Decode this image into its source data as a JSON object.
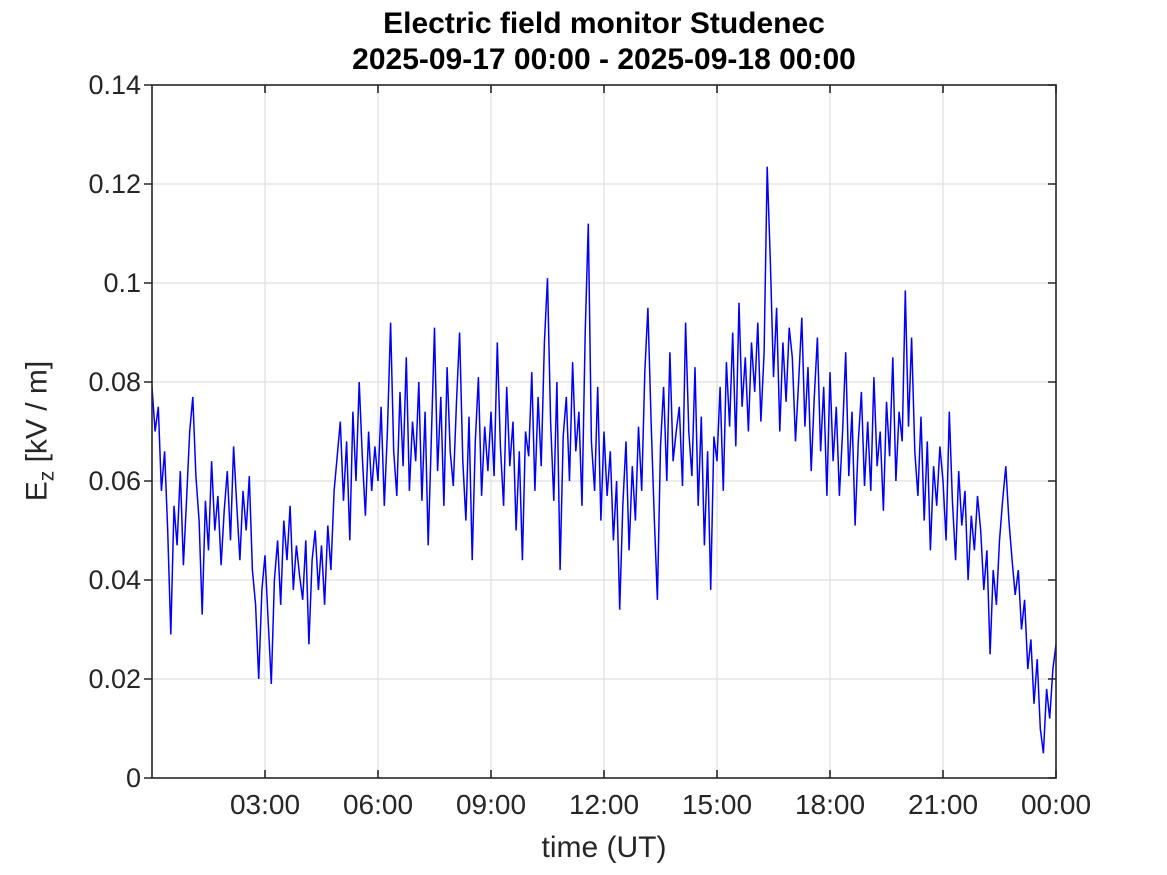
{
  "figure": {
    "title": "Electric field monitor Studenec",
    "subtitle": "2025-09-17 00:00 - 2025-09-18 00:00",
    "background_color": "#ffffff"
  },
  "chart_data": {
    "type": "line",
    "title": "Electric field monitor Studenec",
    "subtitle": "2025-09-17 00:00 - 2025-09-18 00:00",
    "xlabel": "time (UT)",
    "ylabel": "E_z [kV / m]",
    "ylabel_parts": {
      "base": "E",
      "sub": "z",
      "rest": " [kV / m]"
    },
    "legend": "none",
    "grid": true,
    "box": true,
    "line_color": "#0000ff",
    "grid_color": "#e0e0e0",
    "axis_color": "#262626",
    "title_color": "#000000",
    "xlim_hours": [
      0,
      24
    ],
    "ylim": [
      0,
      0.14
    ],
    "xticks": [
      {
        "hour": 3,
        "label": "03:00"
      },
      {
        "hour": 6,
        "label": "06:00"
      },
      {
        "hour": 9,
        "label": "09:00"
      },
      {
        "hour": 12,
        "label": "12:00"
      },
      {
        "hour": 15,
        "label": "15:00"
      },
      {
        "hour": 18,
        "label": "18:00"
      },
      {
        "hour": 21,
        "label": "21:00"
      },
      {
        "hour": 24,
        "label": "00:00"
      }
    ],
    "yticks": [
      {
        "value": 0,
        "label": "0"
      },
      {
        "value": 0.02,
        "label": "0.02"
      },
      {
        "value": 0.04,
        "label": "0.04"
      },
      {
        "value": 0.06,
        "label": "0.06"
      },
      {
        "value": 0.08,
        "label": "0.08"
      },
      {
        "value": 0.1,
        "label": "0.1"
      },
      {
        "value": 0.12,
        "label": "0.12"
      },
      {
        "value": 0.14,
        "label": "0.14"
      }
    ],
    "series": [
      {
        "name": "Ez",
        "units": "kV/m",
        "x_start_hour": 0,
        "x_step_minutes": 5,
        "notable_points": [
          {
            "time": "16:20",
            "value": 0.1235,
            "note": "max spike"
          },
          {
            "time": "11:35",
            "value": 0.112
          },
          {
            "time": "10:30",
            "value": 0.101
          },
          {
            "time": "20:00",
            "value": 0.0985
          },
          {
            "time": "23:40",
            "value": 0.005,
            "note": "minimum"
          }
        ],
        "values": [
          0.079,
          0.07,
          0.075,
          0.058,
          0.066,
          0.05,
          0.029,
          0.055,
          0.047,
          0.062,
          0.043,
          0.056,
          0.07,
          0.077,
          0.061,
          0.052,
          0.033,
          0.056,
          0.046,
          0.064,
          0.05,
          0.057,
          0.043,
          0.054,
          0.062,
          0.048,
          0.067,
          0.055,
          0.044,
          0.058,
          0.05,
          0.061,
          0.042,
          0.035,
          0.02,
          0.038,
          0.045,
          0.032,
          0.019,
          0.04,
          0.048,
          0.035,
          0.052,
          0.044,
          0.055,
          0.038,
          0.047,
          0.041,
          0.036,
          0.048,
          0.027,
          0.044,
          0.05,
          0.038,
          0.047,
          0.035,
          0.051,
          0.042,
          0.058,
          0.065,
          0.072,
          0.056,
          0.068,
          0.048,
          0.074,
          0.06,
          0.08,
          0.065,
          0.053,
          0.07,
          0.058,
          0.067,
          0.06,
          0.075,
          0.055,
          0.07,
          0.092,
          0.066,
          0.057,
          0.078,
          0.063,
          0.085,
          0.058,
          0.072,
          0.064,
          0.08,
          0.056,
          0.074,
          0.047,
          0.069,
          0.091,
          0.062,
          0.077,
          0.055,
          0.083,
          0.066,
          0.059,
          0.076,
          0.09,
          0.064,
          0.052,
          0.073,
          0.044,
          0.068,
          0.081,
          0.057,
          0.071,
          0.062,
          0.074,
          0.061,
          0.088,
          0.067,
          0.055,
          0.079,
          0.063,
          0.072,
          0.05,
          0.066,
          0.044,
          0.07,
          0.065,
          0.082,
          0.058,
          0.077,
          0.063,
          0.088,
          0.101,
          0.072,
          0.056,
          0.08,
          0.042,
          0.069,
          0.077,
          0.06,
          0.084,
          0.066,
          0.074,
          0.055,
          0.09,
          0.112,
          0.068,
          0.058,
          0.079,
          0.052,
          0.07,
          0.057,
          0.066,
          0.048,
          0.06,
          0.034,
          0.055,
          0.068,
          0.046,
          0.063,
          0.052,
          0.071,
          0.058,
          0.082,
          0.095,
          0.072,
          0.053,
          0.036,
          0.067,
          0.079,
          0.06,
          0.086,
          0.064,
          0.07,
          0.075,
          0.059,
          0.092,
          0.07,
          0.061,
          0.083,
          0.055,
          0.073,
          0.047,
          0.066,
          0.038,
          0.069,
          0.064,
          0.079,
          0.058,
          0.084,
          0.071,
          0.09,
          0.067,
          0.096,
          0.075,
          0.085,
          0.07,
          0.088,
          0.078,
          0.092,
          0.072,
          0.086,
          0.1235,
          0.104,
          0.081,
          0.095,
          0.07,
          0.088,
          0.076,
          0.091,
          0.085,
          0.068,
          0.08,
          0.093,
          0.071,
          0.083,
          0.062,
          0.077,
          0.089,
          0.066,
          0.079,
          0.057,
          0.082,
          0.064,
          0.075,
          0.057,
          0.07,
          0.086,
          0.061,
          0.074,
          0.051,
          0.068,
          0.078,
          0.059,
          0.072,
          0.058,
          0.081,
          0.063,
          0.07,
          0.054,
          0.076,
          0.065,
          0.085,
          0.06,
          0.074,
          0.068,
          0.0985,
          0.071,
          0.089,
          0.066,
          0.057,
          0.073,
          0.052,
          0.068,
          0.046,
          0.063,
          0.055,
          0.067,
          0.06,
          0.048,
          0.074,
          0.056,
          0.044,
          0.062,
          0.051,
          0.058,
          0.04,
          0.053,
          0.046,
          0.057,
          0.05,
          0.038,
          0.046,
          0.025,
          0.042,
          0.035,
          0.048,
          0.056,
          0.063,
          0.052,
          0.044,
          0.037,
          0.042,
          0.03,
          0.036,
          0.022,
          0.028,
          0.015,
          0.024,
          0.01,
          0.005,
          0.018,
          0.012,
          0.022,
          0.027
        ]
      }
    ]
  }
}
